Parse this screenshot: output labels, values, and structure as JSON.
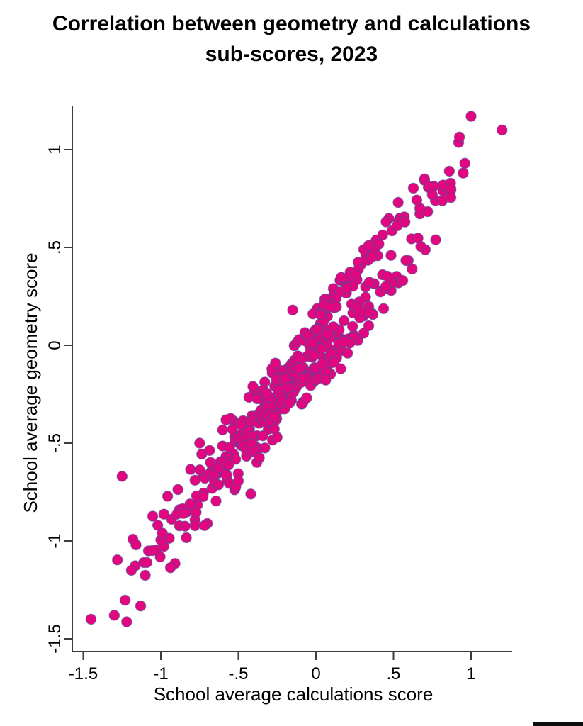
{
  "page": {
    "background": "#ffffff"
  },
  "title": {
    "line1": "Correlation between geometry and calculations",
    "line2": "sub-scores, 2023"
  },
  "chart_data": {
    "type": "scatter",
    "title": "Correlation between geometry and calculations sub-scores, 2023",
    "xlabel": "School average calculations score",
    "ylabel": "School average geometry score",
    "xlim": [
      -1.57,
      1.27
    ],
    "ylim": [
      -1.57,
      1.22
    ],
    "grid": false,
    "legend": null,
    "axis_color": "#3c3c3c",
    "marker": {
      "shape": "circle",
      "radius_px": 7.2,
      "fill": "#E2067F",
      "stroke": "#37549B",
      "stroke_opacity": 0.5,
      "stroke_width": 1.2
    },
    "x_ticks": [
      {
        "value": -1.5,
        "label": "-1.5"
      },
      {
        "value": -1.0,
        "label": "-1"
      },
      {
        "value": -0.5,
        "label": "-.5"
      },
      {
        "value": 0.0,
        "label": "0"
      },
      {
        "value": 0.5,
        "label": ".5"
      },
      {
        "value": 1.0,
        "label": "1"
      }
    ],
    "y_ticks": [
      {
        "value": 1.0,
        "label": "1"
      },
      {
        "value": 0.5,
        "label": ".5"
      },
      {
        "value": 0.0,
        "label": "0"
      },
      {
        "value": -0.5,
        "label": "-.5"
      },
      {
        "value": -1.0,
        "label": "-1"
      },
      {
        "value": -1.5,
        "label": "-1.5"
      }
    ],
    "trend": {
      "slope": 0.98,
      "intercept": -0.03,
      "description": "strong positive correlation, cloud runs from about (-1.45,-1.40) to (1.20,1.10)"
    },
    "anchor_points": [
      [
        -1.45,
        -1.4
      ],
      [
        -1.3,
        -1.38
      ],
      [
        -1.25,
        -0.67
      ],
      [
        -1.19,
        -1.15
      ],
      [
        -1.16,
        -1.02
      ],
      [
        -1.09,
        -1.11
      ],
      [
        -1.02,
        -0.92
      ],
      [
        -0.99,
        -0.96
      ],
      [
        -0.75,
        -0.5
      ],
      [
        -0.42,
        -0.76
      ],
      [
        -0.15,
        0.18
      ],
      [
        0.16,
        -0.12
      ],
      [
        0.34,
        0.1
      ],
      [
        0.34,
        0.51
      ],
      [
        0.45,
        0.3
      ],
      [
        0.53,
        0.73
      ],
      [
        0.67,
        0.7
      ],
      [
        0.7,
        0.85
      ],
      [
        0.73,
        0.81
      ],
      [
        0.75,
        0.77
      ],
      [
        0.86,
        0.89
      ],
      [
        0.87,
        0.8
      ],
      [
        0.95,
        0.88
      ],
      [
        0.96,
        0.93
      ],
      [
        1.0,
        1.17
      ],
      [
        1.2,
        1.1
      ]
    ],
    "cloud": {
      "comment": "dense point cloud reconstructed from pixels: y = slope*x + intercept + noise_amp*(cycle7+cycle11)",
      "slope": 0.98,
      "intercept": -0.03,
      "noise_amp": 0.75,
      "cycle7": [
        0.0,
        0.09,
        -0.11,
        0.15,
        -0.06,
        0.12,
        -0.15
      ],
      "cycle11": [
        0.06,
        -0.08,
        0.13,
        -0.13,
        0.02,
        0.1,
        -0.03,
        0.14,
        -0.11,
        0.05,
        -0.1
      ],
      "passes": [
        {
          "start": -1.28,
          "step": 0.05,
          "count": 45,
          "p7": 3,
          "p11": 5
        },
        {
          "start": -1.22,
          "step": 0.055,
          "count": 40,
          "p7": 6,
          "p11": 10
        },
        {
          "start": -1.1,
          "step": 0.048,
          "count": 42,
          "p7": 2,
          "p11": 4
        },
        {
          "start": -0.98,
          "step": 0.042,
          "count": 41,
          "p7": 5,
          "p11": 9
        },
        {
          "start": -0.88,
          "step": 0.036,
          "count": 41,
          "p7": 1,
          "p11": 3
        },
        {
          "start": -0.78,
          "step": 0.031,
          "count": 41,
          "p7": 4,
          "p11": 8
        },
        {
          "start": -0.68,
          "step": 0.026,
          "count": 41,
          "p7": 0,
          "p11": 2
        },
        {
          "start": -0.58,
          "step": 0.021,
          "count": 42,
          "p7": 3,
          "p11": 7
        },
        {
          "start": -0.5,
          "step": 0.017,
          "count": 42,
          "p7": 6,
          "p11": 1
        },
        {
          "start": -0.42,
          "step": 0.0138,
          "count": 41,
          "p7": 2,
          "p11": 6
        },
        {
          "start": -0.34,
          "step": 0.0112,
          "count": 40,
          "p7": 5,
          "p11": 0
        }
      ]
    },
    "n_points_approx": 481
  },
  "footer": {
    "black_bar": true
  }
}
